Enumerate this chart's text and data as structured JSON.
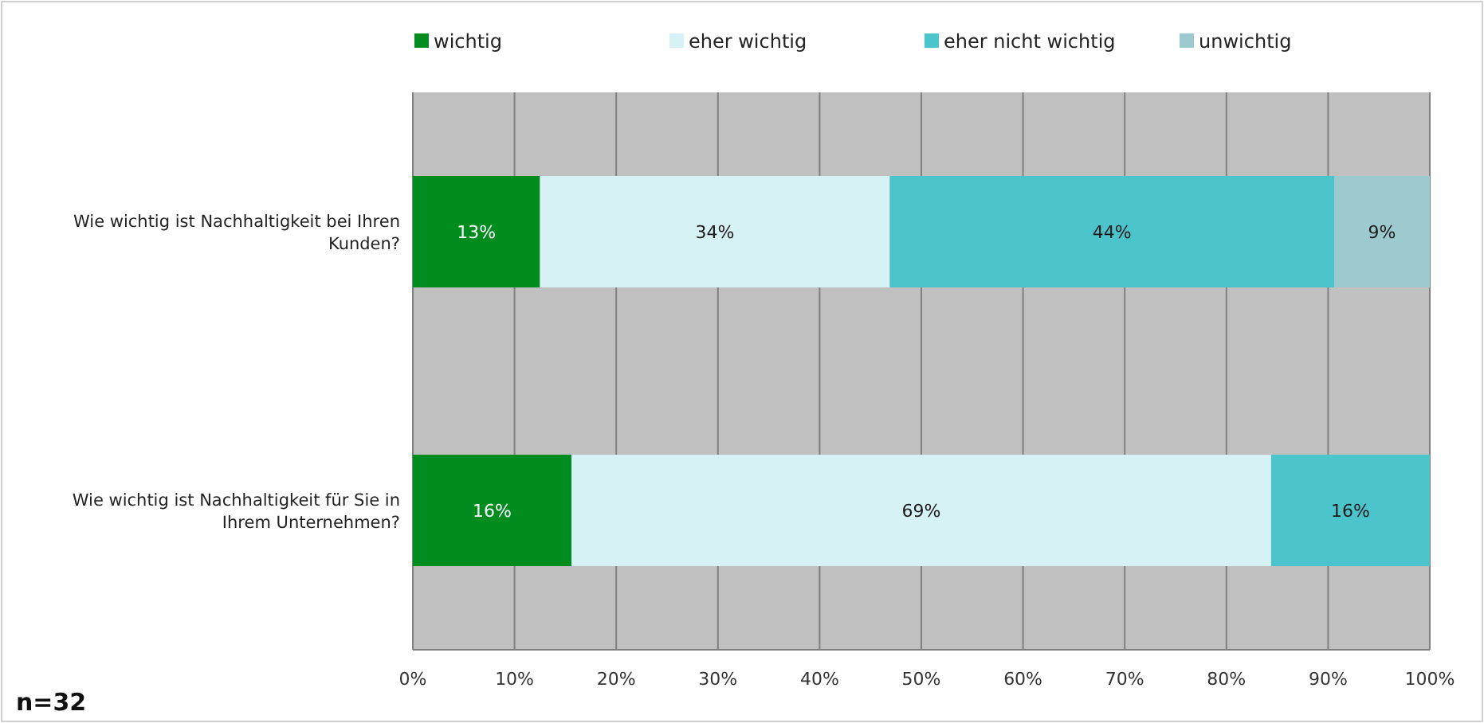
{
  "chart_data": {
    "type": "bar",
    "orientation": "horizontal",
    "stacked": true,
    "categories": [
      "Wie wichtig ist Nachhaltigkeit bei Ihren Kunden?",
      "Wie wichtig ist Nachhaltigkeit für Sie in Ihrem Unternehmen?"
    ],
    "series": [
      {
        "name": "wichtig",
        "color": "#008c1e",
        "values": [
          12.5,
          15.6
        ],
        "value_labels": [
          "13%",
          "16%"
        ]
      },
      {
        "name": "eher wichtig",
        "color": "#d6f2f5",
        "values": [
          34.4,
          68.8
        ],
        "value_labels": [
          "34%",
          "69%"
        ]
      },
      {
        "name": "eher nicht wichtig",
        "color": "#4cc4cc",
        "values": [
          43.7,
          15.6
        ],
        "value_labels": [
          "44%",
          "16%"
        ]
      },
      {
        "name": "unwichtig",
        "color": "#9ccace",
        "values": [
          9.4,
          null
        ],
        "value_labels": [
          "9%",
          null
        ]
      }
    ],
    "xlim": [
      0,
      100
    ],
    "xticks": [
      {
        "value": 0,
        "label": "0%"
      },
      {
        "value": 10,
        "label": "10%"
      },
      {
        "value": 20,
        "label": "20%"
      },
      {
        "value": 30,
        "label": "30%"
      },
      {
        "value": 40,
        "label": "40%"
      },
      {
        "value": 50,
        "label": "50%"
      },
      {
        "value": 60,
        "label": "60%"
      },
      {
        "value": 70,
        "label": "70%"
      },
      {
        "value": 80,
        "label": "80%"
      },
      {
        "value": 90,
        "label": "90%"
      },
      {
        "value": 100,
        "label": "100%"
      }
    ],
    "grid": "x",
    "legend": "top",
    "annotations": [
      "n=32"
    ]
  }
}
